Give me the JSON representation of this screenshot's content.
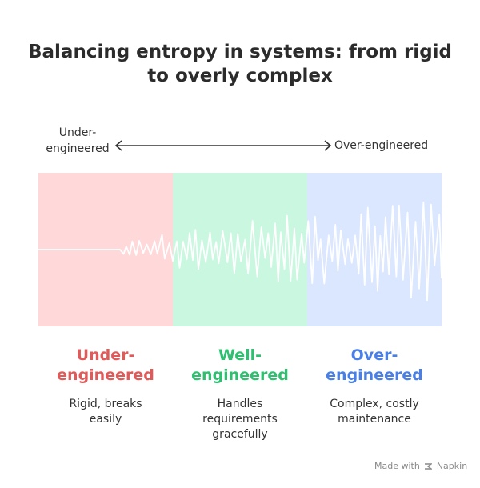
{
  "title": {
    "line1": "Balancing entropy in systems: from rigid",
    "line2": "to overly complex"
  },
  "scale": {
    "left_line1": "Under-",
    "left_line2": "engineered",
    "right": "Over-engineered"
  },
  "categories": [
    {
      "title_line1": "Under-",
      "title_line2": "engineered",
      "desc_lines": [
        "Rigid, breaks",
        "easily"
      ],
      "title_color": "#e05a5a",
      "band_color": "#ffd9d9"
    },
    {
      "title_line1": "Well-",
      "title_line2": "engineered",
      "desc_lines": [
        "Handles",
        "requirements",
        "gracefully"
      ],
      "title_color": "#2fbf71",
      "band_color": "#c9f7e0"
    },
    {
      "title_line1": "Over-",
      "title_line2": "engineered",
      "desc_lines": [
        "Complex, costly",
        "maintenance"
      ],
      "title_color": "#4a80e6",
      "band_color": "#dbe6ff"
    }
  ],
  "footer": {
    "made_with": "Made with",
    "brand": "Napkin"
  },
  "colors": {
    "signal": "#ffffff",
    "arrow": "#333333"
  }
}
